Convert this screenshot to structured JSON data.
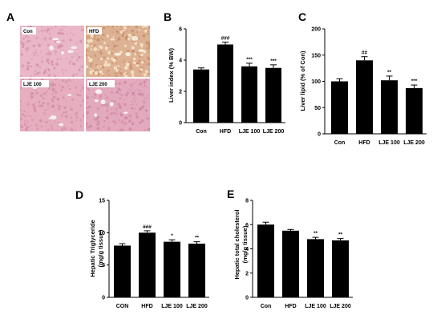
{
  "panels": {
    "A": {
      "letter": "A",
      "images": [
        {
          "label": "Con",
          "base": "#e9b7c7",
          "accent": "#d792aa",
          "hole": "#f7eef0"
        },
        {
          "label": "HFD",
          "base": "#ddb294",
          "accent": "#c98f6b",
          "hole": "#f6ead9"
        },
        {
          "label": "LJE 100",
          "base": "#e6aebf",
          "accent": "#d391a8",
          "hole": "#f8eff2"
        },
        {
          "label": "LJE 200",
          "base": "#e3aabe",
          "accent": "#cf8aa5",
          "hole": "#f8eff3"
        }
      ]
    }
  },
  "chart_data": [
    {
      "id": "B",
      "letter": "B",
      "type": "bar",
      "categories": [
        "Con",
        "HFD",
        "LJE 100",
        "LJE 200"
      ],
      "values": [
        3.4,
        5.0,
        3.6,
        3.5
      ],
      "errors": [
        0.1,
        0.15,
        0.2,
        0.2
      ],
      "significance": [
        "",
        "###",
        "***",
        "***"
      ],
      "ylabel": "Liver index (% BW)",
      "ylim": [
        0,
        6
      ],
      "yticks": [
        "0",
        "2",
        "4",
        "6"
      ],
      "color": "#000000"
    },
    {
      "id": "C",
      "letter": "C",
      "type": "bar",
      "categories": [
        "Con",
        "HFD",
        "LJE 100",
        "LJE 200"
      ],
      "values": [
        100,
        140,
        102,
        87
      ],
      "errors": [
        5,
        7,
        8,
        6
      ],
      "significance": [
        "",
        "##",
        "**",
        "***"
      ],
      "ylabel": "Liver lipid (% of Con)",
      "ylim": [
        0,
        200
      ],
      "yticks": [
        "0",
        "50",
        "100",
        "150",
        "200"
      ],
      "color": "#000000"
    },
    {
      "id": "D",
      "letter": "D",
      "type": "bar",
      "categories": [
        "CON",
        "HFD",
        "LJE 100",
        "LJE 200"
      ],
      "values": [
        8.0,
        10.0,
        8.6,
        8.3
      ],
      "errors": [
        0.3,
        0.3,
        0.3,
        0.3
      ],
      "significance": [
        "",
        "###",
        "*",
        "**"
      ],
      "ylabel": "Hepatic Triglyceride",
      "ylabel2": "(mg/g tissue)",
      "ylim": [
        0,
        15
      ],
      "yticks": [
        "0",
        "5",
        "10",
        "15"
      ],
      "color": "#000000"
    },
    {
      "id": "E",
      "letter": "E",
      "type": "bar",
      "categories": [
        "Con",
        "HFD",
        "LJE 100",
        "LJE 200"
      ],
      "values": [
        6.0,
        5.5,
        4.8,
        4.7
      ],
      "errors": [
        0.2,
        0.1,
        0.15,
        0.15
      ],
      "significance": [
        "",
        "",
        "**",
        "**"
      ],
      "ylabel": "Hepatic total cholesterol",
      "ylabel2": "(mg/g tissue)",
      "ylim": [
        0,
        8
      ],
      "yticks": [
        "0",
        "2",
        "4",
        "6",
        "8"
      ],
      "color": "#000000"
    }
  ]
}
